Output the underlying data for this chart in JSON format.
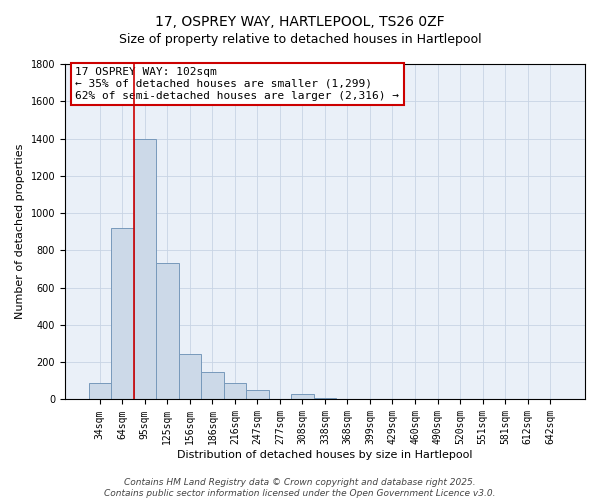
{
  "title_line1": "17, OSPREY WAY, HARTLEPOOL, TS26 0ZF",
  "title_line2": "Size of property relative to detached houses in Hartlepool",
  "xlabel": "Distribution of detached houses by size in Hartlepool",
  "ylabel": "Number of detached properties",
  "bar_labels": [
    "34sqm",
    "64sqm",
    "95sqm",
    "125sqm",
    "156sqm",
    "186sqm",
    "216sqm",
    "247sqm",
    "277sqm",
    "308sqm",
    "338sqm",
    "368sqm",
    "399sqm",
    "429sqm",
    "460sqm",
    "490sqm",
    "520sqm",
    "551sqm",
    "581sqm",
    "612sqm",
    "642sqm"
  ],
  "bar_values": [
    90,
    920,
    1400,
    730,
    245,
    145,
    90,
    50,
    0,
    28,
    10,
    0,
    0,
    0,
    0,
    0,
    0,
    0,
    0,
    0,
    0
  ],
  "bar_color": "#ccd9e8",
  "bar_edge_color": "#7799bb",
  "ylim": [
    0,
    1800
  ],
  "yticks": [
    0,
    200,
    400,
    600,
    800,
    1000,
    1200,
    1400,
    1600,
    1800
  ],
  "red_line_x": 1.5,
  "annotation_title": "17 OSPREY WAY: 102sqm",
  "annotation_line2": "← 35% of detached houses are smaller (1,299)",
  "annotation_line3": "62% of semi-detached houses are larger (2,316) →",
  "red_line_color": "#cc0000",
  "annotation_border_color": "#cc0000",
  "footer_line1": "Contains HM Land Registry data © Crown copyright and database right 2025.",
  "footer_line2": "Contains public sector information licensed under the Open Government Licence v3.0.",
  "background_color": "#ffffff",
  "plot_bg_color": "#eaf0f8",
  "grid_color": "#c8d4e4",
  "title_fontsize": 10,
  "subtitle_fontsize": 9,
  "axis_label_fontsize": 8,
  "tick_fontsize": 7,
  "annotation_fontsize": 8,
  "footer_fontsize": 6.5
}
